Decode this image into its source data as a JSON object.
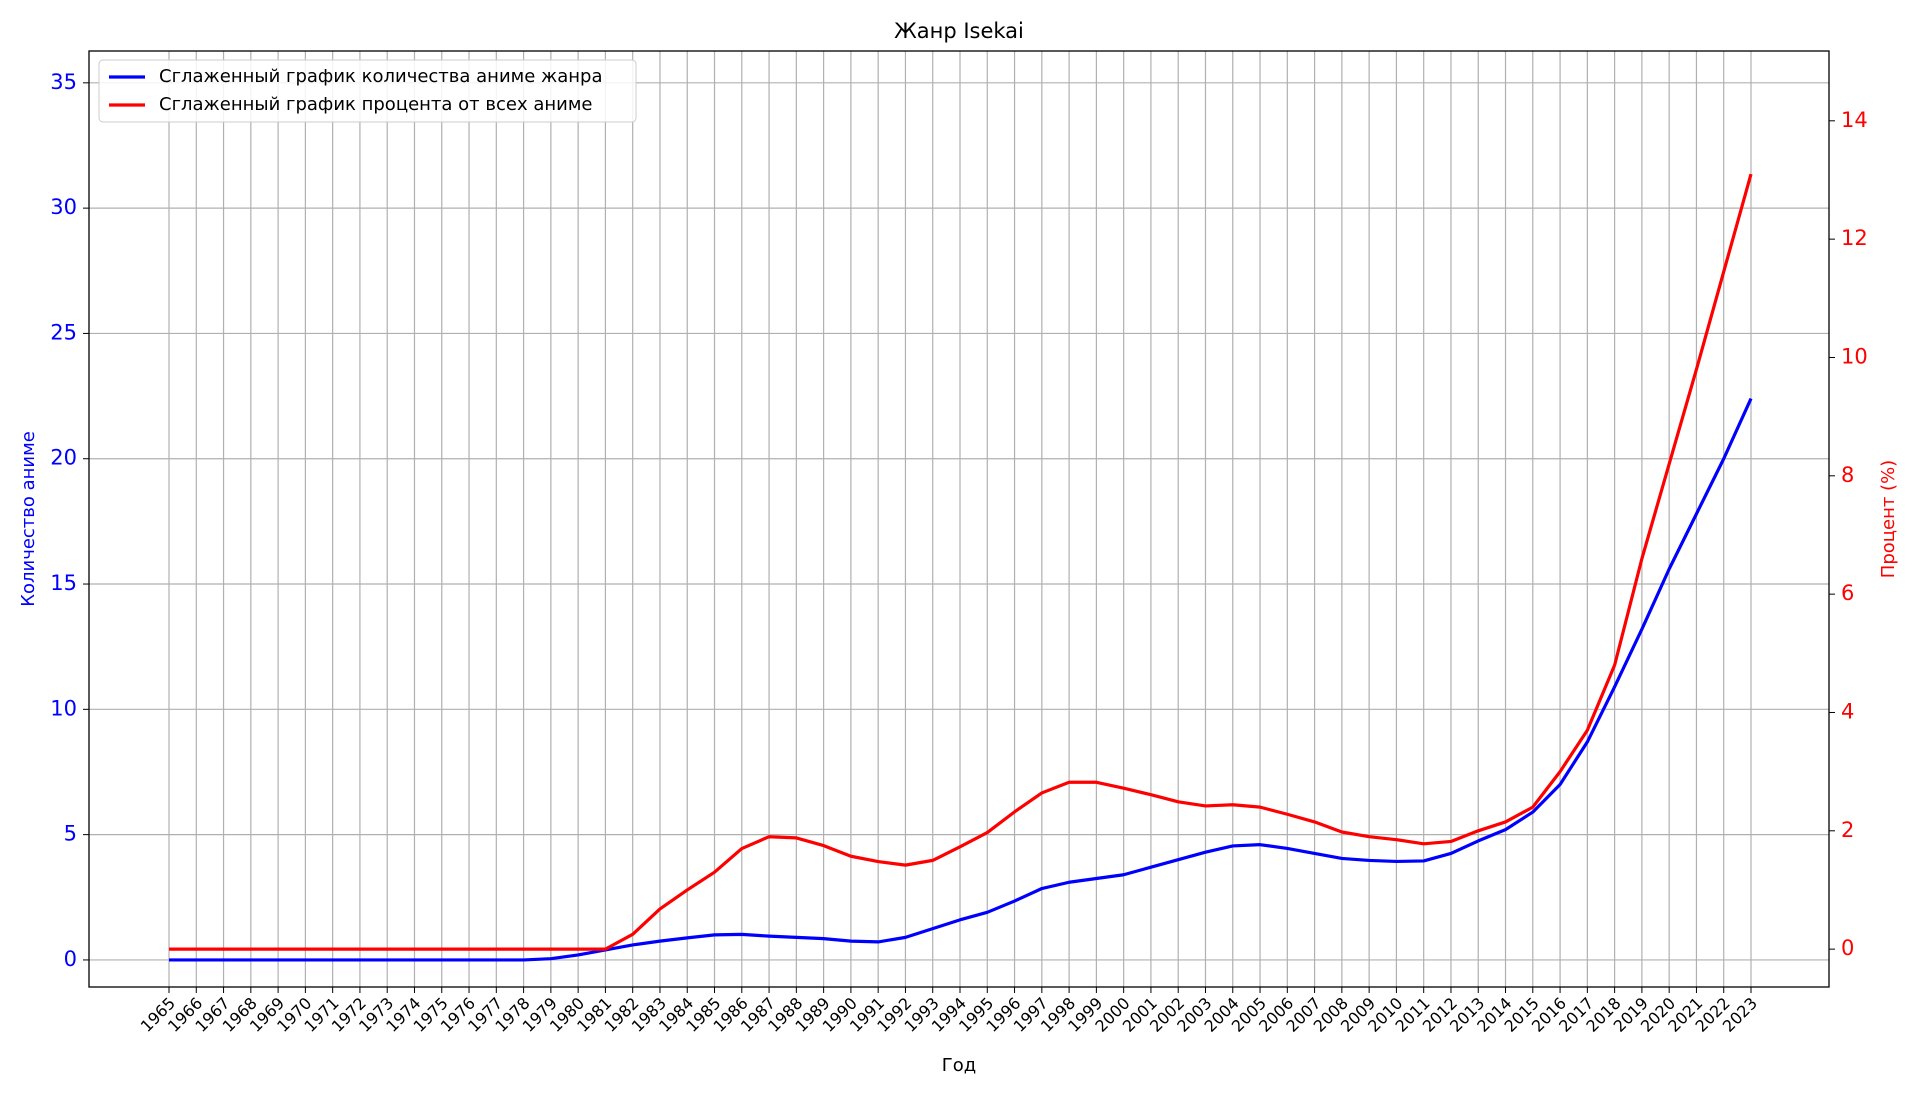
{
  "chart_data": {
    "type": "line",
    "title": "Жанр Isekai",
    "x_label": "Год",
    "y_label": "Количество аниме",
    "y2_label": "Процент (%)",
    "categories": [
      "1965",
      "1966",
      "1967",
      "1968",
      "1969",
      "1970",
      "1971",
      "1972",
      "1973",
      "1974",
      "1975",
      "1976",
      "1977",
      "1978",
      "1979",
      "1980",
      "1981",
      "1982",
      "1983",
      "1984",
      "1985",
      "1986",
      "1987",
      "1988",
      "1989",
      "1990",
      "1991",
      "1992",
      "1993",
      "1994",
      "1995",
      "1996",
      "1997",
      "1998",
      "1999",
      "2000",
      "2001",
      "2002",
      "2003",
      "2004",
      "2005",
      "2006",
      "2007",
      "2008",
      "2009",
      "2010",
      "2011",
      "2012",
      "2013",
      "2014",
      "2015",
      "2016",
      "2017",
      "2018",
      "2019",
      "2020",
      "2021",
      "2022",
      "2023"
    ],
    "series": [
      {
        "name": "Сглаженный график количества аниме жанра",
        "color": "#0000ff",
        "axis": "y",
        "values": [
          0,
          0,
          0,
          0,
          0,
          0,
          0,
          0,
          0,
          0,
          0,
          0,
          0,
          0,
          0.05,
          0.2,
          0.4,
          0.6,
          0.75,
          0.88,
          1.0,
          1.02,
          0.95,
          0.9,
          0.85,
          0.75,
          0.72,
          0.9,
          1.25,
          1.6,
          1.9,
          2.35,
          2.85,
          3.1,
          3.25,
          3.4,
          3.7,
          4.0,
          4.3,
          4.55,
          4.6,
          4.45,
          4.25,
          4.05,
          3.97,
          3.93,
          3.95,
          4.25,
          4.75,
          5.2,
          5.9,
          7.0,
          8.7,
          10.9,
          13.2,
          15.6,
          17.8,
          20.0,
          22.4
        ]
      },
      {
        "name": "Сглаженный график процента от всех аниме",
        "color": "#ff0000",
        "axis": "y2",
        "values": [
          0,
          0,
          0,
          0,
          0,
          0,
          0,
          0,
          0,
          0,
          0,
          0,
          0,
          0,
          0,
          0,
          0,
          0.25,
          0.68,
          1.0,
          1.3,
          1.7,
          1.9,
          1.88,
          1.75,
          1.57,
          1.48,
          1.42,
          1.5,
          1.73,
          1.97,
          2.32,
          2.64,
          2.82,
          2.82,
          2.72,
          2.61,
          2.49,
          2.42,
          2.44,
          2.4,
          2.28,
          2.15,
          1.98,
          1.9,
          1.85,
          1.78,
          1.82,
          2.0,
          2.15,
          2.4,
          3.0,
          3.7,
          4.8,
          6.6,
          8.2,
          9.8,
          11.45,
          13.1
        ]
      }
    ],
    "ylim": [
      -1.08,
      36.27
    ],
    "yticks": [
      0,
      5,
      10,
      15,
      20,
      25,
      30,
      35
    ],
    "y2lim": [
      -0.64,
      15.18
    ],
    "y2ticks": [
      0,
      2,
      4,
      6,
      8,
      10,
      12,
      14
    ],
    "grid": true,
    "legend": "upper left"
  }
}
